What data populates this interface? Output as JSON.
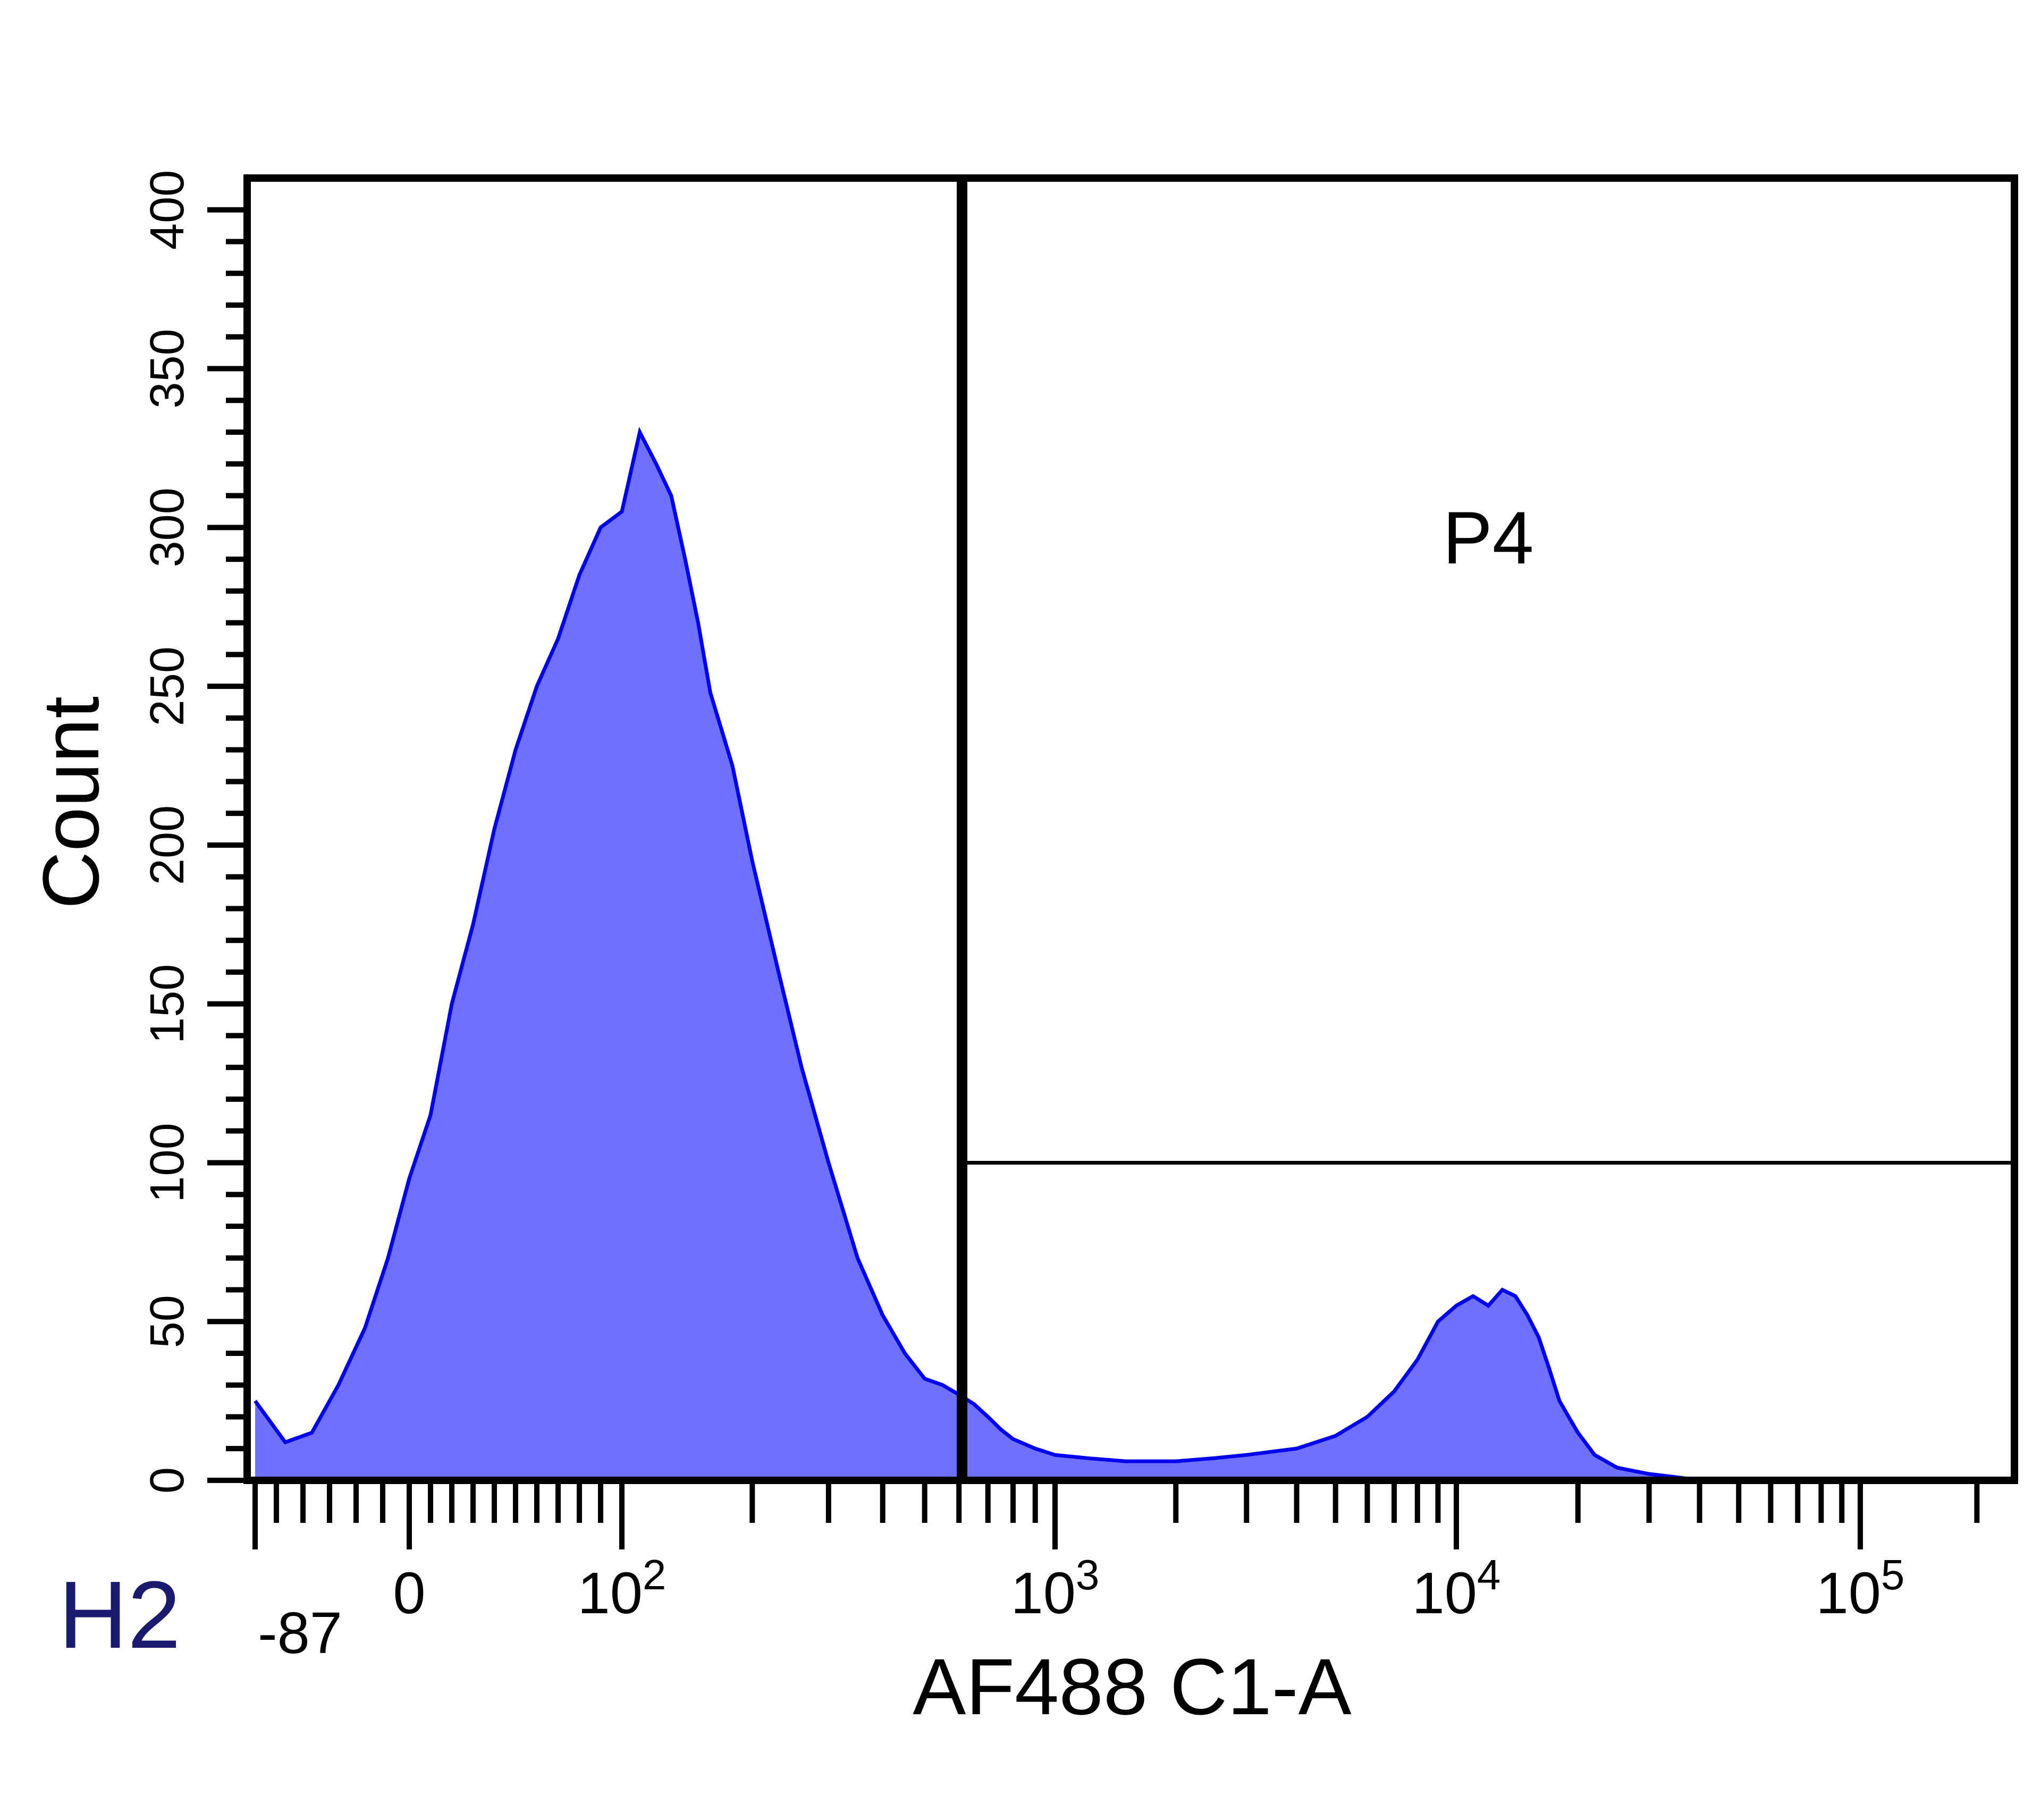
{
  "panel_label": "H2",
  "chart_data": {
    "type": "histogram",
    "xlabel": "AF488 C1-A",
    "ylabel": "Count",
    "x_scale": "biexponential",
    "xlim": [
      -87,
      250000
    ],
    "ylim": [
      0,
      410
    ],
    "x_ticks": [
      {
        "value": -87,
        "label": "-87"
      },
      {
        "value": 0,
        "label": "0"
      },
      {
        "value": 100,
        "label": "10",
        "exp": "2"
      },
      {
        "value": 1000,
        "label": "10",
        "exp": "3"
      },
      {
        "value": 10000,
        "label": "10",
        "exp": "4"
      },
      {
        "value": 100000,
        "label": "10",
        "exp": "5"
      }
    ],
    "y_ticks": [
      0,
      50,
      100,
      150,
      200,
      250,
      300,
      350,
      400
    ],
    "fill_color": "#7070ff",
    "line_color": "#0000ee",
    "gate": {
      "name": "P4",
      "x_min": 610,
      "x_max": 250000,
      "marker_count": 100
    },
    "series": [
      {
        "x": [
          -87,
          -70,
          -55,
          -40,
          -25,
          -12,
          0,
          10,
          20,
          30,
          40,
          50,
          60,
          70,
          80,
          90,
          100,
          110,
          120,
          130,
          140,
          150,
          160,
          180,
          200,
          230,
          260,
          300,
          350,
          400,
          450,
          500,
          550,
          600,
          650,
          700,
          750,
          800,
          900,
          1000,
          1200,
          1500,
          2000,
          2500,
          3000,
          4000,
          5000,
          6000,
          7000,
          8000,
          9000,
          10000,
          11000,
          12000,
          13000,
          14000,
          15000,
          16000,
          17000,
          18000,
          20000,
          22000,
          25000,
          30000,
          35000,
          40000,
          50000,
          70000,
          100000,
          150000,
          250000
        ],
        "y": [
          25,
          12,
          15,
          30,
          48,
          70,
          95,
          115,
          150,
          175,
          205,
          230,
          250,
          265,
          285,
          300,
          305,
          330,
          320,
          310,
          290,
          270,
          248,
          225,
          195,
          160,
          130,
          100,
          70,
          52,
          40,
          32,
          30,
          27,
          24,
          20,
          16,
          13,
          10,
          8,
          7,
          6,
          6,
          7,
          8,
          10,
          14,
          20,
          28,
          38,
          50,
          55,
          58,
          55,
          60,
          58,
          52,
          45,
          35,
          25,
          15,
          8,
          4,
          2,
          1,
          0,
          0,
          0,
          0,
          0,
          0
        ]
      }
    ]
  }
}
